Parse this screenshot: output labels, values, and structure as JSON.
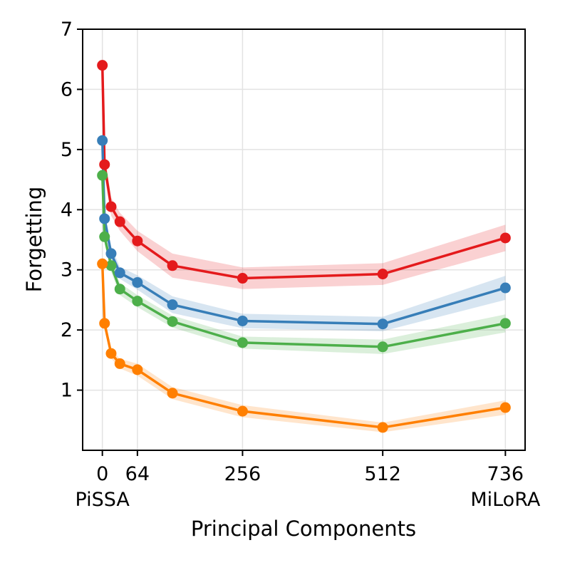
{
  "chart_data": {
    "type": "line",
    "title": "",
    "xlabel": "Principal Components",
    "ylabel": "Forgetting",
    "xlim": [
      -36,
      772
    ],
    "ylim": [
      0,
      7
    ],
    "grid": true,
    "x_ticks": [
      {
        "value": 0,
        "label": "0",
        "sublabel": "PiSSA"
      },
      {
        "value": 64,
        "label": "64",
        "sublabel": ""
      },
      {
        "value": 256,
        "label": "256",
        "sublabel": ""
      },
      {
        "value": 512,
        "label": "512",
        "sublabel": ""
      },
      {
        "value": 736,
        "label": "736",
        "sublabel": "MiLoRA"
      }
    ],
    "y_ticks": [
      1,
      2,
      3,
      4,
      5,
      6,
      7
    ],
    "x": [
      0,
      4,
      16,
      32,
      64,
      128,
      256,
      512,
      736
    ],
    "series": [
      {
        "name": "red",
        "color": "#e41a1c",
        "values": [
          6.4,
          4.75,
          4.05,
          3.8,
          3.48,
          3.07,
          2.86,
          2.93,
          3.53
        ],
        "band": [
          0.32,
          0.2,
          0.15,
          0.15,
          0.17,
          0.2,
          0.18,
          0.18,
          0.22
        ]
      },
      {
        "name": "blue",
        "color": "#377eb8",
        "values": [
          5.15,
          3.85,
          3.27,
          2.95,
          2.79,
          2.42,
          2.15,
          2.1,
          2.7
        ],
        "band": [
          0.25,
          0.15,
          0.12,
          0.1,
          0.12,
          0.14,
          0.12,
          0.12,
          0.2
        ]
      },
      {
        "name": "green",
        "color": "#4daf4a",
        "values": [
          4.57,
          3.55,
          3.07,
          2.68,
          2.48,
          2.14,
          1.79,
          1.72,
          2.11
        ],
        "band": [
          0.2,
          0.12,
          0.1,
          0.1,
          0.1,
          0.1,
          0.1,
          0.12,
          0.15
        ]
      },
      {
        "name": "orange",
        "color": "#ff7f00",
        "values": [
          3.1,
          2.11,
          1.61,
          1.44,
          1.34,
          0.95,
          0.65,
          0.38,
          0.71
        ],
        "band": [
          0.12,
          0.1,
          0.08,
          0.08,
          0.1,
          0.1,
          0.1,
          0.08,
          0.12
        ]
      }
    ]
  }
}
